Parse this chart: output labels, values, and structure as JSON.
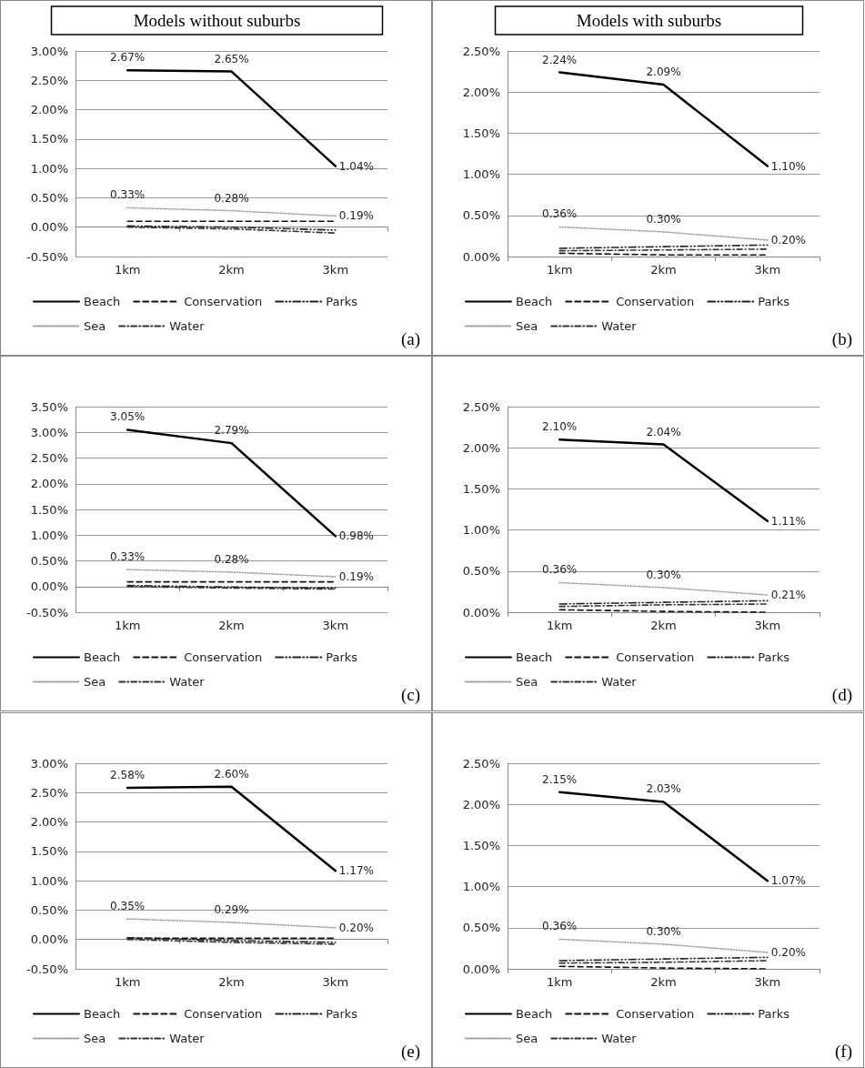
{
  "chart_data": [
    {
      "type": "line",
      "title": "Models without suburbs",
      "categories": [
        "1km",
        "2km",
        "3km"
      ],
      "ylim": [
        -0.5,
        3
      ],
      "yticks": [
        {
          "value": -0.5,
          "label": "-0.50%"
        },
        {
          "value": 0,
          "label": "0.00%"
        },
        {
          "value": 0.5,
          "label": "0.50%"
        },
        {
          "value": 1,
          "label": "1.00%"
        },
        {
          "value": 1.5,
          "label": "1.50%"
        },
        {
          "value": 2,
          "label": "2.00%"
        },
        {
          "value": 2.5,
          "label": "2.50%"
        },
        {
          "value": 3,
          "label": "3.00%"
        }
      ],
      "grid": "y",
      "legend": "bottom",
      "marker": "none",
      "annotations": [
        "(a)"
      ],
      "series": [
        {
          "name": "Beach",
          "color": "#000000",
          "line_style": "solid",
          "values": [
            2.67,
            2.65,
            1.04
          ],
          "value_labels": [
            "2.67%",
            "2.65%",
            "1.04%"
          ]
        },
        {
          "name": "Conservation",
          "color": "#111111",
          "line_style": "dashed",
          "values": [
            0.1,
            0.1,
            0.1
          ]
        },
        {
          "name": "Parks",
          "color": "#222222",
          "line_style": "dashdotdot",
          "values": [
            0.02,
            0.0,
            -0.05
          ]
        },
        {
          "name": "Sea",
          "color": "#999999",
          "line_style": "dotted",
          "values": [
            0.33,
            0.28,
            0.19
          ],
          "value_labels": [
            "0.33%",
            "0.28%",
            "0.19%"
          ]
        },
        {
          "name": "Water",
          "color": "#333333",
          "line_style": "dashdot",
          "values": [
            0.0,
            -0.03,
            -0.1
          ]
        }
      ]
    },
    {
      "type": "line",
      "title": "Models with suburbs",
      "categories": [
        "1km",
        "2km",
        "3km"
      ],
      "ylim": [
        0,
        2.5
      ],
      "yticks": [
        {
          "value": 0,
          "label": "0.00%"
        },
        {
          "value": 0.5,
          "label": "0.50%"
        },
        {
          "value": 1,
          "label": "1.00%"
        },
        {
          "value": 1.5,
          "label": "1.50%"
        },
        {
          "value": 2,
          "label": "2.00%"
        },
        {
          "value": 2.5,
          "label": "2.50%"
        }
      ],
      "grid": "y",
      "legend": "bottom",
      "marker": "none",
      "annotations": [
        "(b)"
      ],
      "series": [
        {
          "name": "Beach",
          "color": "#000000",
          "line_style": "solid",
          "values": [
            2.24,
            2.09,
            1.1
          ],
          "value_labels": [
            "2.24%",
            "2.09%",
            "1.10%"
          ]
        },
        {
          "name": "Conservation",
          "color": "#111111",
          "line_style": "dashed",
          "values": [
            0.04,
            0.02,
            0.02
          ]
        },
        {
          "name": "Parks",
          "color": "#222222",
          "line_style": "dashdotdot",
          "values": [
            0.1,
            0.12,
            0.14
          ]
        },
        {
          "name": "Sea",
          "color": "#999999",
          "line_style": "dotted",
          "values": [
            0.36,
            0.3,
            0.2
          ],
          "value_labels": [
            "0.36%",
            "0.30%",
            "0.20%"
          ]
        },
        {
          "name": "Water",
          "color": "#333333",
          "line_style": "dashdot",
          "values": [
            0.07,
            0.08,
            0.09
          ]
        }
      ]
    },
    {
      "type": "line",
      "categories": [
        "1km",
        "2km",
        "3km"
      ],
      "ylim": [
        -0.5,
        3.5
      ],
      "yticks": [
        {
          "value": -0.5,
          "label": "-0.50%"
        },
        {
          "value": 0,
          "label": "0.00%"
        },
        {
          "value": 0.5,
          "label": "0.50%"
        },
        {
          "value": 1,
          "label": "1.00%"
        },
        {
          "value": 1.5,
          "label": "1.50%"
        },
        {
          "value": 2,
          "label": "2.00%"
        },
        {
          "value": 2.5,
          "label": "2.50%"
        },
        {
          "value": 3,
          "label": "3.00%"
        },
        {
          "value": 3.5,
          "label": "3.50%"
        }
      ],
      "grid": "y",
      "legend": "bottom",
      "marker": "none",
      "annotations": [
        "(c)"
      ],
      "series": [
        {
          "name": "Beach",
          "color": "#000000",
          "line_style": "solid",
          "values": [
            3.05,
            2.79,
            0.98
          ],
          "value_labels": [
            "3.05%",
            "2.79%",
            "0.98%"
          ]
        },
        {
          "name": "Conservation",
          "color": "#111111",
          "line_style": "dashed",
          "values": [
            0.09,
            0.09,
            0.09
          ]
        },
        {
          "name": "Parks",
          "color": "#222222",
          "line_style": "dashdotdot",
          "values": [
            0.02,
            -0.01,
            -0.03
          ]
        },
        {
          "name": "Sea",
          "color": "#999999",
          "line_style": "dotted",
          "values": [
            0.33,
            0.28,
            0.19
          ],
          "value_labels": [
            "0.33%",
            "0.28%",
            "0.19%"
          ]
        },
        {
          "name": "Water",
          "color": "#333333",
          "line_style": "dashdot",
          "values": [
            0.0,
            -0.03,
            -0.05
          ]
        }
      ]
    },
    {
      "type": "line",
      "categories": [
        "1km",
        "2km",
        "3km"
      ],
      "ylim": [
        0,
        2.5
      ],
      "yticks": [
        {
          "value": 0,
          "label": "0.00%"
        },
        {
          "value": 0.5,
          "label": "0.50%"
        },
        {
          "value": 1,
          "label": "1.00%"
        },
        {
          "value": 1.5,
          "label": "1.50%"
        },
        {
          "value": 2,
          "label": "2.00%"
        },
        {
          "value": 2.5,
          "label": "2.50%"
        }
      ],
      "grid": "y",
      "legend": "bottom",
      "marker": "none",
      "annotations": [
        "(d)"
      ],
      "series": [
        {
          "name": "Beach",
          "color": "#000000",
          "line_style": "solid",
          "values": [
            2.1,
            2.04,
            1.11
          ],
          "value_labels": [
            "2.10%",
            "2.04%",
            "1.11%"
          ]
        },
        {
          "name": "Conservation",
          "color": "#111111",
          "line_style": "dashed",
          "values": [
            0.03,
            0.01,
            0.0
          ]
        },
        {
          "name": "Parks",
          "color": "#222222",
          "line_style": "dashdotdot",
          "values": [
            0.1,
            0.12,
            0.14
          ]
        },
        {
          "name": "Sea",
          "color": "#999999",
          "line_style": "dotted",
          "values": [
            0.36,
            0.3,
            0.21
          ],
          "value_labels": [
            "0.36%",
            "0.30%",
            "0.21%"
          ]
        },
        {
          "name": "Water",
          "color": "#333333",
          "line_style": "dashdot",
          "values": [
            0.07,
            0.09,
            0.1
          ]
        }
      ]
    },
    {
      "type": "line",
      "categories": [
        "1km",
        "2km",
        "3km"
      ],
      "ylim": [
        -0.5,
        3
      ],
      "yticks": [
        {
          "value": -0.5,
          "label": "-0.50%"
        },
        {
          "value": 0,
          "label": "0.00%"
        },
        {
          "value": 0.5,
          "label": "0.50%"
        },
        {
          "value": 1,
          "label": "1.00%"
        },
        {
          "value": 1.5,
          "label": "1.50%"
        },
        {
          "value": 2,
          "label": "2.00%"
        },
        {
          "value": 2.5,
          "label": "2.50%"
        },
        {
          "value": 3,
          "label": "3.00%"
        }
      ],
      "grid": "y",
      "legend": "bottom",
      "marker": "none",
      "annotations": [
        "(e)"
      ],
      "series": [
        {
          "name": "Beach",
          "color": "#000000",
          "line_style": "solid",
          "values": [
            2.58,
            2.6,
            1.17
          ],
          "value_labels": [
            "2.58%",
            "2.60%",
            "1.17%"
          ]
        },
        {
          "name": "Conservation",
          "color": "#111111",
          "line_style": "dashed",
          "values": [
            0.02,
            0.02,
            0.02
          ]
        },
        {
          "name": "Parks",
          "color": "#222222",
          "line_style": "dashdotdot",
          "values": [
            0.03,
            -0.02,
            -0.05
          ]
        },
        {
          "name": "Sea",
          "color": "#999999",
          "line_style": "dotted",
          "values": [
            0.35,
            0.29,
            0.2
          ],
          "value_labels": [
            "0.35%",
            "0.29%",
            "0.20%"
          ]
        },
        {
          "name": "Water",
          "color": "#333333",
          "line_style": "dashdot",
          "values": [
            0.0,
            -0.05,
            -0.08
          ]
        }
      ]
    },
    {
      "type": "line",
      "categories": [
        "1km",
        "2km",
        "3km"
      ],
      "ylim": [
        0,
        2.5
      ],
      "yticks": [
        {
          "value": 0,
          "label": "0.00%"
        },
        {
          "value": 0.5,
          "label": "0.50%"
        },
        {
          "value": 1,
          "label": "1.00%"
        },
        {
          "value": 1.5,
          "label": "1.50%"
        },
        {
          "value": 2,
          "label": "2.00%"
        },
        {
          "value": 2.5,
          "label": "2.50%"
        }
      ],
      "grid": "y",
      "legend": "bottom",
      "marker": "none",
      "annotations": [
        "(f)"
      ],
      "series": [
        {
          "name": "Beach",
          "color": "#000000",
          "line_style": "solid",
          "values": [
            2.15,
            2.03,
            1.07
          ],
          "value_labels": [
            "2.15%",
            "2.03%",
            "1.07%"
          ]
        },
        {
          "name": "Conservation",
          "color": "#111111",
          "line_style": "dashed",
          "values": [
            0.03,
            0.01,
            0.0
          ]
        },
        {
          "name": "Parks",
          "color": "#222222",
          "line_style": "dashdotdot",
          "values": [
            0.1,
            0.12,
            0.14
          ]
        },
        {
          "name": "Sea",
          "color": "#999999",
          "line_style": "dotted",
          "values": [
            0.36,
            0.3,
            0.2
          ],
          "value_labels": [
            "0.36%",
            "0.30%",
            "0.20%"
          ]
        },
        {
          "name": "Water",
          "color": "#333333",
          "line_style": "dashdot",
          "values": [
            0.07,
            0.08,
            0.1
          ]
        }
      ]
    }
  ]
}
